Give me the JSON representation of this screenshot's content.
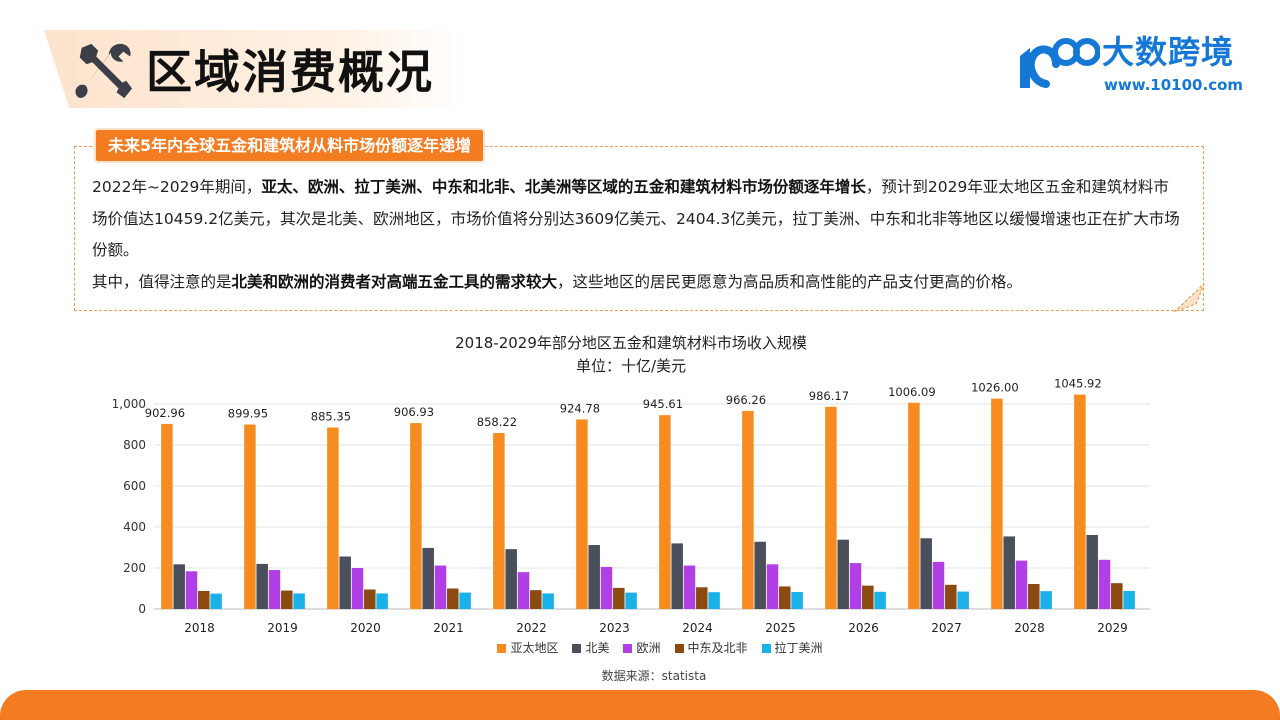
{
  "header": {
    "title": "区域消费概况",
    "icon": "tools-icon"
  },
  "logo": {
    "name": "大数跨境",
    "url": "www.10100.com",
    "color": "#1577d6"
  },
  "callout": {
    "tag": "未来5年内全球五金和建筑材从料市场份额逐年递增",
    "p1_pre": "2022年~2029年期间，",
    "p1_bold": "亚太、欧洲、拉丁美洲、中东和北非、北美洲等区域的五金和建筑材料市场份额逐年增长",
    "p1_post": "，预计到2029年亚太地区五金和建筑材料市场价值达10459.2亿美元，其次是北美、欧洲地区，市场价值将分别达3609亿美元、2404.3亿美元，拉丁美洲、中东和北非等地区以缓慢增速也正在扩大市场份额。",
    "p2_pre": "其中，值得注意的是",
    "p2_bold": "北美和欧洲的消费者对高端五金工具的需求较大",
    "p2_post": "，这些地区的居民更愿意为高品质和高性能的产品支付更高的价格。"
  },
  "chart_data": {
    "type": "bar",
    "title": "2018-2029年部分地区五金和建筑材料市场收入规模",
    "unit": "单位：十亿/美元",
    "categories": [
      "2018",
      "2019",
      "2020",
      "2021",
      "2022",
      "2023",
      "2024",
      "2025",
      "2026",
      "2027",
      "2028",
      "2029"
    ],
    "ylim": [
      0,
      1000
    ],
    "yticks": [
      0,
      200,
      400,
      600,
      800,
      1000
    ],
    "ytick_labels": [
      "0",
      "200",
      "400",
      "600",
      "800",
      "1,000"
    ],
    "grid": true,
    "legend_position": "bottom",
    "data_label_series": 0,
    "series": [
      {
        "name": "亚太地区",
        "color": "#f68b1f",
        "values": [
          902.96,
          899.95,
          885.35,
          906.93,
          858.22,
          924.78,
          945.61,
          966.26,
          986.17,
          1006.09,
          1026.0,
          1045.92
        ],
        "labels": [
          "902.96",
          "899.95",
          "885.35",
          "906.93",
          "858.22",
          "924.78",
          "945.61",
          "966.26",
          "986.17",
          "1006.09",
          "1026.00",
          "1045.92"
        ]
      },
      {
        "name": "北美",
        "color": "#4a4f5c",
        "values": [
          218,
          220,
          256,
          298,
          292,
          312,
          320,
          328,
          338,
          345,
          354,
          361
        ]
      },
      {
        "name": "欧洲",
        "color": "#b040e6",
        "values": [
          184,
          190,
          200,
          212,
          180,
          205,
          212,
          218,
          224,
          230,
          236,
          240
        ]
      },
      {
        "name": "中东及北非",
        "color": "#8a4a10",
        "values": [
          88,
          90,
          95,
          100,
          92,
          103,
          106,
          110,
          114,
          118,
          122,
          126
        ]
      },
      {
        "name": "拉丁美洲",
        "color": "#1ab0e8",
        "values": [
          75,
          76,
          76,
          80,
          76,
          80,
          82,
          83,
          84,
          85,
          87,
          88
        ]
      }
    ],
    "source": "数据来源：statista"
  },
  "colors": {
    "accent": "#f47c20",
    "title_bg": "#fde3cc"
  }
}
